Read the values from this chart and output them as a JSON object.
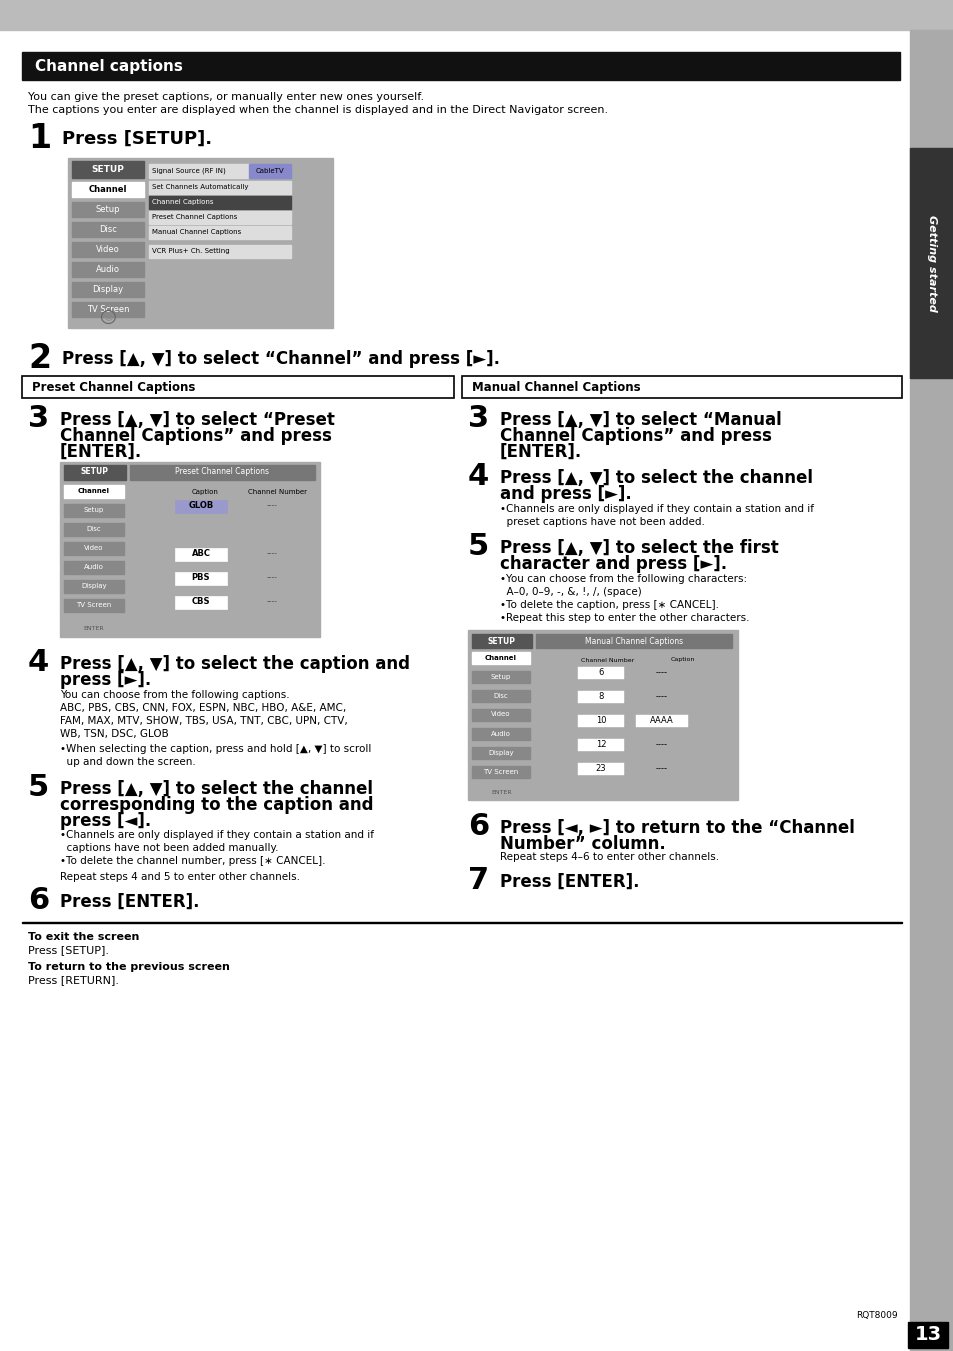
{
  "page_bg": "#ffffff",
  "top_bar_color": "#bbbbbb",
  "sidebar_bg": "#aaaaaa",
  "sidebar_dark_bg": "#333333",
  "header_bar_bg": "#111111",
  "header_bar_text": "Channel captions",
  "header_bar_text_color": "#ffffff",
  "intro_line1": "You can give the preset captions, or manually enter new ones yourself.",
  "intro_line2": "The captions you enter are displayed when the channel is displayed and in the Direct Navigator screen.",
  "sidebar_text": "Getting started",
  "sidebar_text_color": "#ffffff",
  "page_number": "13",
  "model_code": "RQT8009",
  "step1_num": "1",
  "step1_text": "Press [SETUP].",
  "step2_num": "2",
  "step2_text": "Press [▲, ▼] to select “Channel” and press [►].",
  "left_box_title": "Preset Channel Captions",
  "right_box_title": "Manual Channel Captions",
  "step3L_num": "3",
  "step3L_line1": "Press [▲, ▼] to select “Preset",
  "step3L_line2": "Channel Captions” and press",
  "step3L_line3": "[ENTER].",
  "step4L_num": "4",
  "step4L_line1": "Press [▲, ▼] to select the caption and",
  "step4L_line2": "press [►].",
  "step4L_body1": "You can choose from the following captions.",
  "step4L_body2": "ABC, PBS, CBS, CNN, FOX, ESPN, NBC, HBO, A&E, AMC,",
  "step4L_body3": "FAM, MAX, MTV, SHOW, TBS, USA, TNT, CBC, UPN, CTV,",
  "step4L_body4": "WB, TSN, DSC, GLOB",
  "step4L_bullet": "•When selecting the caption, press and hold [▲, ▼] to scroll",
  "step4L_bullet2": "  up and down the screen.",
  "step5L_num": "5",
  "step5L_line1": "Press [▲, ▼] to select the channel",
  "step5L_line2": "corresponding to the caption and",
  "step5L_line3": "press [◄].",
  "step5L_b1": "•Channels are only displayed if they contain a station and if",
  "step5L_b1b": "  captions have not been added manually.",
  "step5L_b2": "•To delete the channel number, press [∗ CANCEL].",
  "step5L_repeat": "Repeat steps 4 and 5 to enter other channels.",
  "step6L_num": "6",
  "step6L_text": "Press [ENTER].",
  "step3R_num": "3",
  "step3R_line1": "Press [▲, ▼] to select “Manual",
  "step3R_line2": "Channel Captions” and press",
  "step3R_line3": "[ENTER].",
  "step4R_num": "4",
  "step4R_line1": "Press [▲, ▼] to select the channel",
  "step4R_line2": "and press [►].",
  "step4R_b1": "•Channels are only displayed if they contain a station and if",
  "step4R_b1b": "  preset captions have not been added.",
  "step5R_num": "5",
  "step5R_line1": "Press [▲, ▼] to select the first",
  "step5R_line2": "character and press [►].",
  "step5R_b1": "•You can choose from the following characters:",
  "step5R_b1b": "  A–0, 0–9, -, &, !, /, (space)",
  "step5R_b2": "•To delete the caption, press [∗ CANCEL].",
  "step5R_b3": "•Repeat this step to enter the other characters.",
  "step6R_num": "6",
  "step6R_line1": "Press [◄, ►] to return to the “Channel",
  "step6R_line2": "Number” column.",
  "step6R_repeat": "Repeat steps 4–6 to enter other channels.",
  "step7R_num": "7",
  "step7R_text": "Press [ENTER].",
  "footer_line1": "To exit the screen",
  "footer_line2": "Press [SETUP].",
  "footer_line3": "To return to the previous screen",
  "footer_line4": "Press [RETURN]."
}
